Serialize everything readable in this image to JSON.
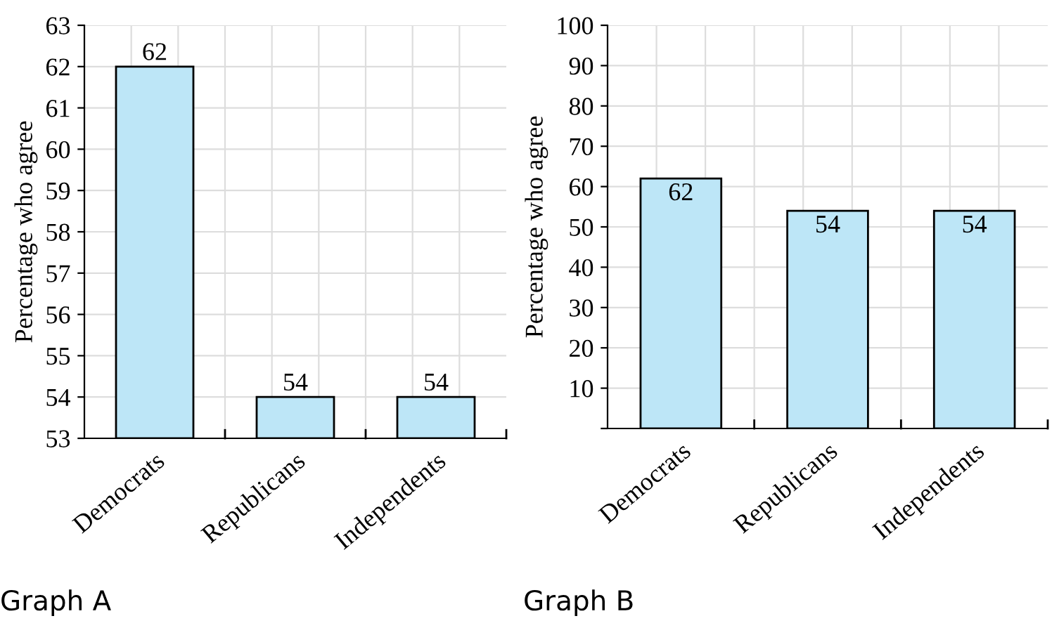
{
  "chart_data": [
    {
      "type": "bar",
      "title": "Graph A",
      "ylabel": "Percentage who agree",
      "categories": [
        "Democrats",
        "Republicans",
        "Independents"
      ],
      "values": [
        62,
        54,
        54
      ],
      "color": "#bde6f7",
      "ylim": [
        53,
        63
      ],
      "yticks": [
        53,
        54,
        55,
        56,
        57,
        58,
        59,
        60,
        61,
        62,
        63
      ],
      "grid": true,
      "data_labels": true
    },
    {
      "type": "bar",
      "title": "Graph B",
      "ylabel": "Percentage who agree",
      "categories": [
        "Democrats",
        "Republicans",
        "Independents"
      ],
      "values": [
        62,
        54,
        54
      ],
      "color": "#bde6f7",
      "ylim": [
        0,
        100
      ],
      "yticks": [
        {
          "value": 0,
          "label": null
        },
        10,
        20,
        30,
        40,
        50,
        60,
        70,
        80,
        90,
        100
      ],
      "grid": true,
      "data_labels": true
    }
  ]
}
